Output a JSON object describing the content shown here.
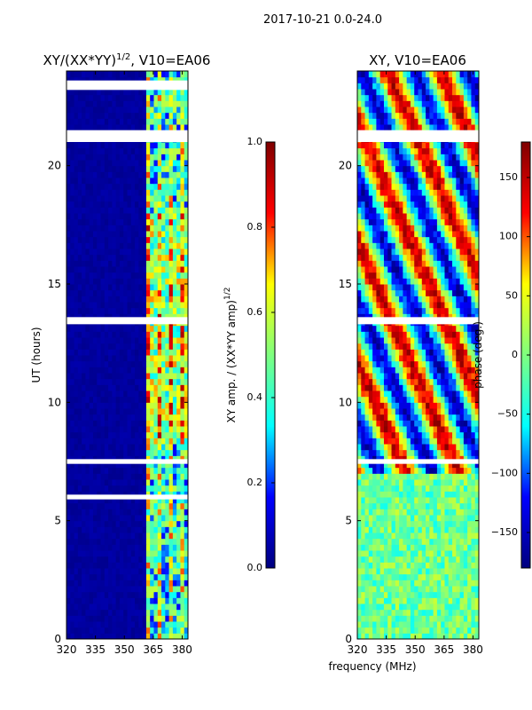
{
  "figure_title": "2017-10-21 0.0-24.0",
  "chart_data": [
    {
      "type": "heatmap",
      "panel": "amplitude",
      "title_main": "XY/(XX*YY)",
      "title_sup": "1/2",
      "title_rest": ", V10=EA06",
      "xlabel": "",
      "ylabel": "UT (hours)",
      "xlim": [
        320,
        383
      ],
      "ylim": [
        0,
        24
      ],
      "xticks": [
        320,
        335,
        350,
        365,
        380
      ],
      "yticks": [
        0,
        5,
        10,
        15,
        20
      ],
      "colorbar": {
        "label_main": "XY amp. / (XX*YY amp)",
        "label_sup": "1/2",
        "range": [
          0.0,
          1.0
        ],
        "ticks": [
          {
            "value": 0.0,
            "label": "0.0"
          },
          {
            "value": 0.2,
            "label": "0.2"
          },
          {
            "value": 0.4,
            "label": "0.4"
          },
          {
            "value": 0.6,
            "label": "0.6"
          },
          {
            "value": 0.8,
            "label": "0.8"
          },
          {
            "value": 1.0,
            "label": "1.0"
          }
        ]
      },
      "flagged_hours": [
        [
          23.2,
          23.6
        ],
        [
          21.0,
          21.5
        ],
        [
          13.3,
          13.6
        ],
        [
          7.4,
          7.6
        ],
        [
          5.9,
          6.1
        ]
      ],
      "active_freq_band_mhz": [
        360,
        383
      ]
    },
    {
      "type": "heatmap",
      "panel": "phase",
      "title_main": "XY, V10=EA06",
      "xlabel": "frequency (MHz)",
      "ylabel": "",
      "xlim": [
        320,
        383
      ],
      "ylim": [
        0,
        24
      ],
      "xticks": [
        320,
        335,
        350,
        365,
        380
      ],
      "yticks": [
        0,
        5,
        10,
        15,
        20
      ],
      "colorbar": {
        "label_main": "phase (deg.)",
        "range": [
          -180,
          180
        ],
        "ticks": [
          {
            "value": -150,
            "label": "−150"
          },
          {
            "value": -100,
            "label": "−100"
          },
          {
            "value": -50,
            "label": "−50"
          },
          {
            "value": 0,
            "label": "0"
          },
          {
            "value": 50,
            "label": "50"
          },
          {
            "value": 100,
            "label": "100"
          },
          {
            "value": 150,
            "label": "150"
          }
        ]
      },
      "flagged_hours": [
        [
          21.0,
          21.5
        ],
        [
          13.3,
          13.6
        ],
        [
          7.4,
          7.6
        ]
      ]
    }
  ],
  "colors": {
    "jet_stops": [
      "#00007f",
      "#0000ff",
      "#00ffff",
      "#7fff7f",
      "#ffff00",
      "#ff0000",
      "#7f0000"
    ],
    "axis": "#000000",
    "flag": "#ffffff"
  }
}
